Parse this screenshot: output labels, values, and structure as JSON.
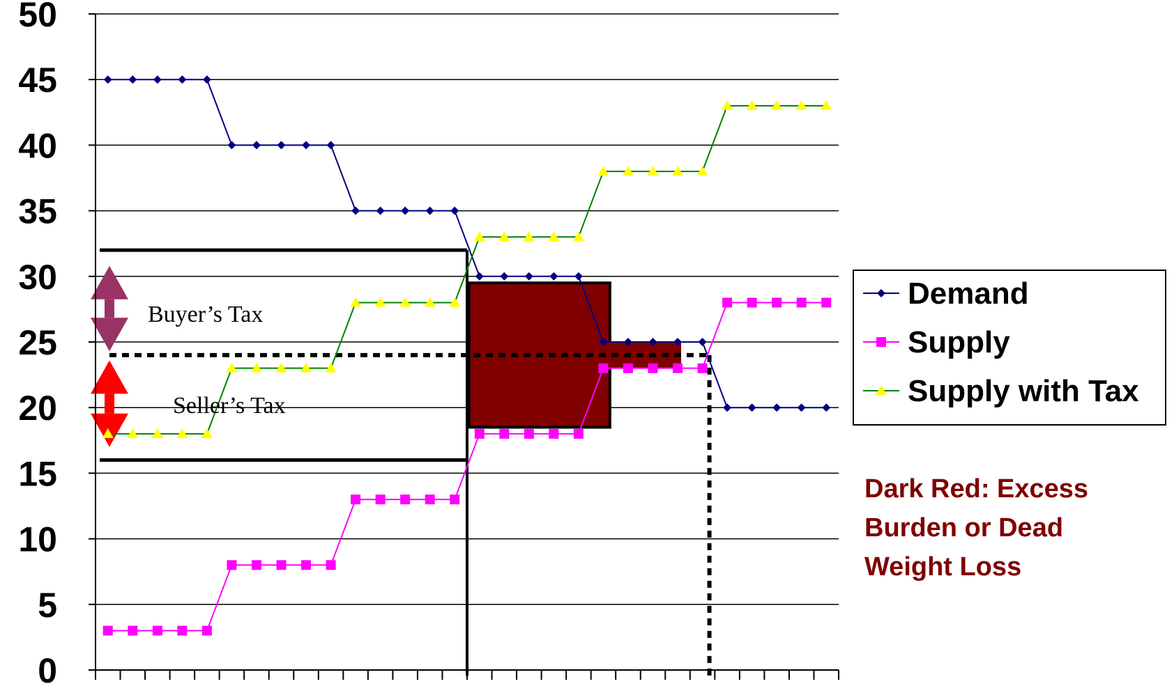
{
  "chart_data": {
    "type": "line",
    "x": [
      1,
      2,
      3,
      4,
      5,
      6,
      7,
      8,
      9,
      10,
      11,
      12,
      13,
      14,
      15,
      16,
      17,
      18,
      19,
      20,
      21,
      22,
      23,
      24,
      25,
      26,
      27,
      28,
      29,
      30
    ],
    "ylim": [
      0,
      50
    ],
    "yticks": [
      "0",
      "5",
      "10",
      "15",
      "20",
      "25",
      "30",
      "35",
      "40",
      "45",
      "50"
    ],
    "grid": true,
    "legend_position": "right",
    "series": [
      {
        "name": "Demand",
        "color": "#000080",
        "marker": "diamond",
        "values": [
          45,
          45,
          45,
          45,
          45,
          40,
          40,
          40,
          40,
          40,
          35,
          35,
          35,
          35,
          35,
          30,
          30,
          30,
          30,
          30,
          25,
          25,
          25,
          25,
          25,
          20,
          20,
          20,
          20,
          20
        ]
      },
      {
        "name": "Supply",
        "color": "#ff00ff",
        "marker": "square",
        "values": [
          3,
          3,
          3,
          3,
          3,
          8,
          8,
          8,
          8,
          8,
          13,
          13,
          13,
          13,
          13,
          18,
          18,
          18,
          18,
          18,
          23,
          23,
          23,
          23,
          23,
          28,
          28,
          28,
          28,
          28
        ]
      },
      {
        "name": "Supply with Tax",
        "color": "#ffff00",
        "line_color": "#008000",
        "marker": "triangle",
        "values": [
          18,
          18,
          18,
          18,
          18,
          23,
          23,
          23,
          23,
          23,
          28,
          28,
          28,
          28,
          28,
          33,
          33,
          33,
          33,
          33,
          38,
          38,
          38,
          38,
          38,
          43,
          43,
          43,
          43,
          43
        ]
      }
    ],
    "annotations": {
      "buyer_tax": "Buyer’s Tax",
      "seller_tax": "Seller’s Tax",
      "note": "Dark Red: Excess Burden or Dead Weight Loss"
    },
    "overlays": {
      "buyer_price": 32,
      "seller_price": 16,
      "pre_tax_price": 24,
      "tax_quantity": 15.5,
      "pre_tax_quantity": 25,
      "dwl_color": "#800000",
      "buyer_arrow_color": "#993366",
      "seller_arrow_color": "#ff0000"
    }
  }
}
